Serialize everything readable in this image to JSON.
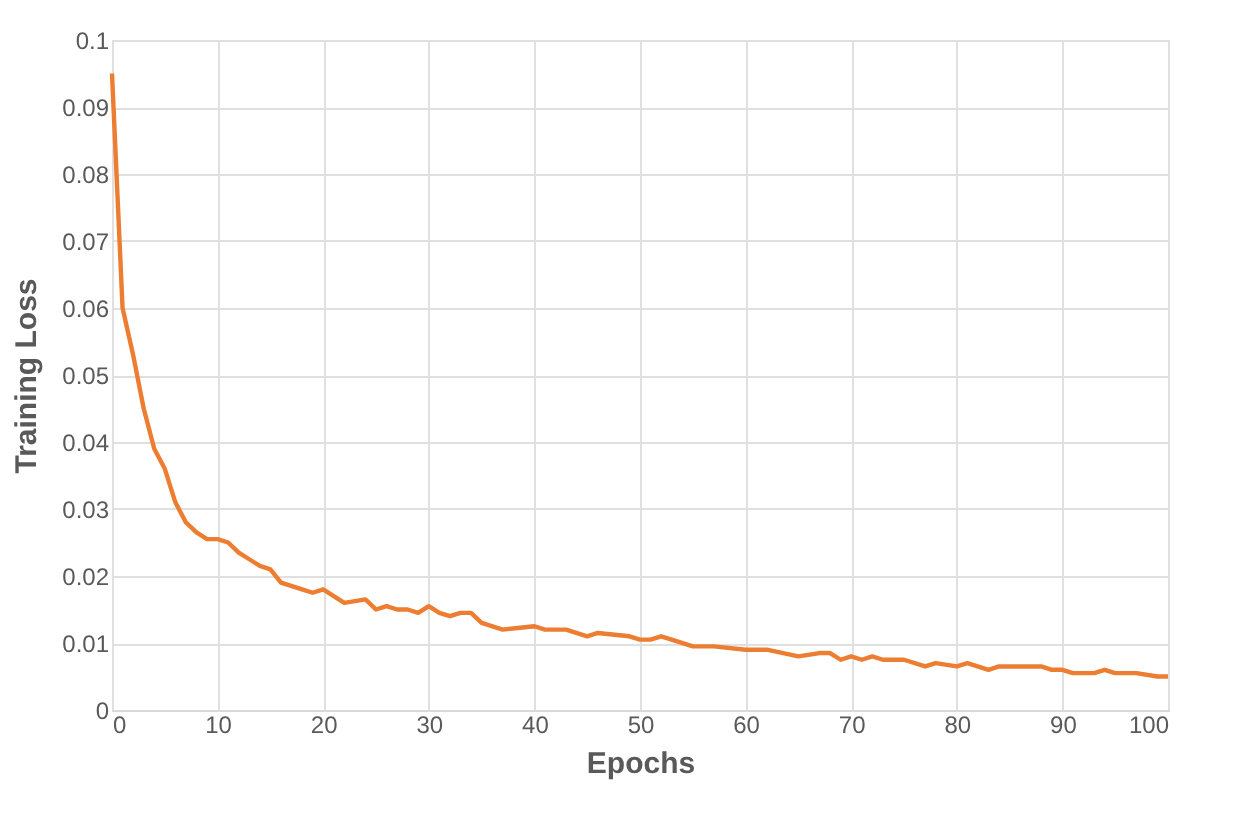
{
  "chart_data": {
    "type": "line",
    "xlabel": "Epochs",
    "ylabel": "Training Loss",
    "x": [
      0,
      1,
      2,
      3,
      4,
      5,
      6,
      7,
      8,
      9,
      10,
      11,
      12,
      13,
      14,
      15,
      16,
      18,
      19,
      20,
      22,
      24,
      25,
      26,
      27,
      28,
      29,
      30,
      31,
      32,
      33,
      34,
      35,
      37,
      40,
      41,
      43,
      45,
      46,
      49,
      50,
      51,
      52,
      53,
      55,
      57,
      60,
      62,
      65,
      67,
      68,
      69,
      70,
      71,
      72,
      73,
      75,
      77,
      78,
      80,
      81,
      83,
      84,
      88,
      89,
      90,
      91,
      93,
      94,
      95,
      97,
      99,
      100
    ],
    "series": [
      {
        "color": "#ed7d31",
        "values": [
          0.095,
          0.06,
          0.053,
          0.045,
          0.039,
          0.036,
          0.031,
          0.028,
          0.0265,
          0.0255,
          0.0255,
          0.025,
          0.0235,
          0.0225,
          0.0215,
          0.021,
          0.019,
          0.018,
          0.0175,
          0.018,
          0.016,
          0.0165,
          0.015,
          0.0155,
          0.015,
          0.015,
          0.0145,
          0.0155,
          0.0145,
          0.014,
          0.0145,
          0.0145,
          0.013,
          0.012,
          0.0125,
          0.012,
          0.012,
          0.011,
          0.0115,
          0.011,
          0.0105,
          0.0105,
          0.011,
          0.0105,
          0.0095,
          0.0095,
          0.009,
          0.009,
          0.008,
          0.0085,
          0.0085,
          0.0075,
          0.008,
          0.0075,
          0.008,
          0.0075,
          0.0075,
          0.0065,
          0.007,
          0.0065,
          0.007,
          0.006,
          0.0065,
          0.0065,
          0.006,
          0.006,
          0.0055,
          0.0055,
          0.006,
          0.0055,
          0.0055,
          0.005,
          0.005
        ]
      }
    ],
    "xlim": [
      0,
      100
    ],
    "xticks": [
      0,
      10,
      20,
      30,
      40,
      50,
      60,
      70,
      80,
      90,
      100
    ],
    "ylim": [
      0,
      0.1
    ],
    "yticks": [
      0,
      0.01,
      0.02,
      0.03,
      0.04,
      0.05,
      0.06,
      0.07,
      0.08,
      0.09,
      0.1
    ],
    "grid": true,
    "legend": false,
    "marker": "none",
    "line_style": "solid"
  }
}
